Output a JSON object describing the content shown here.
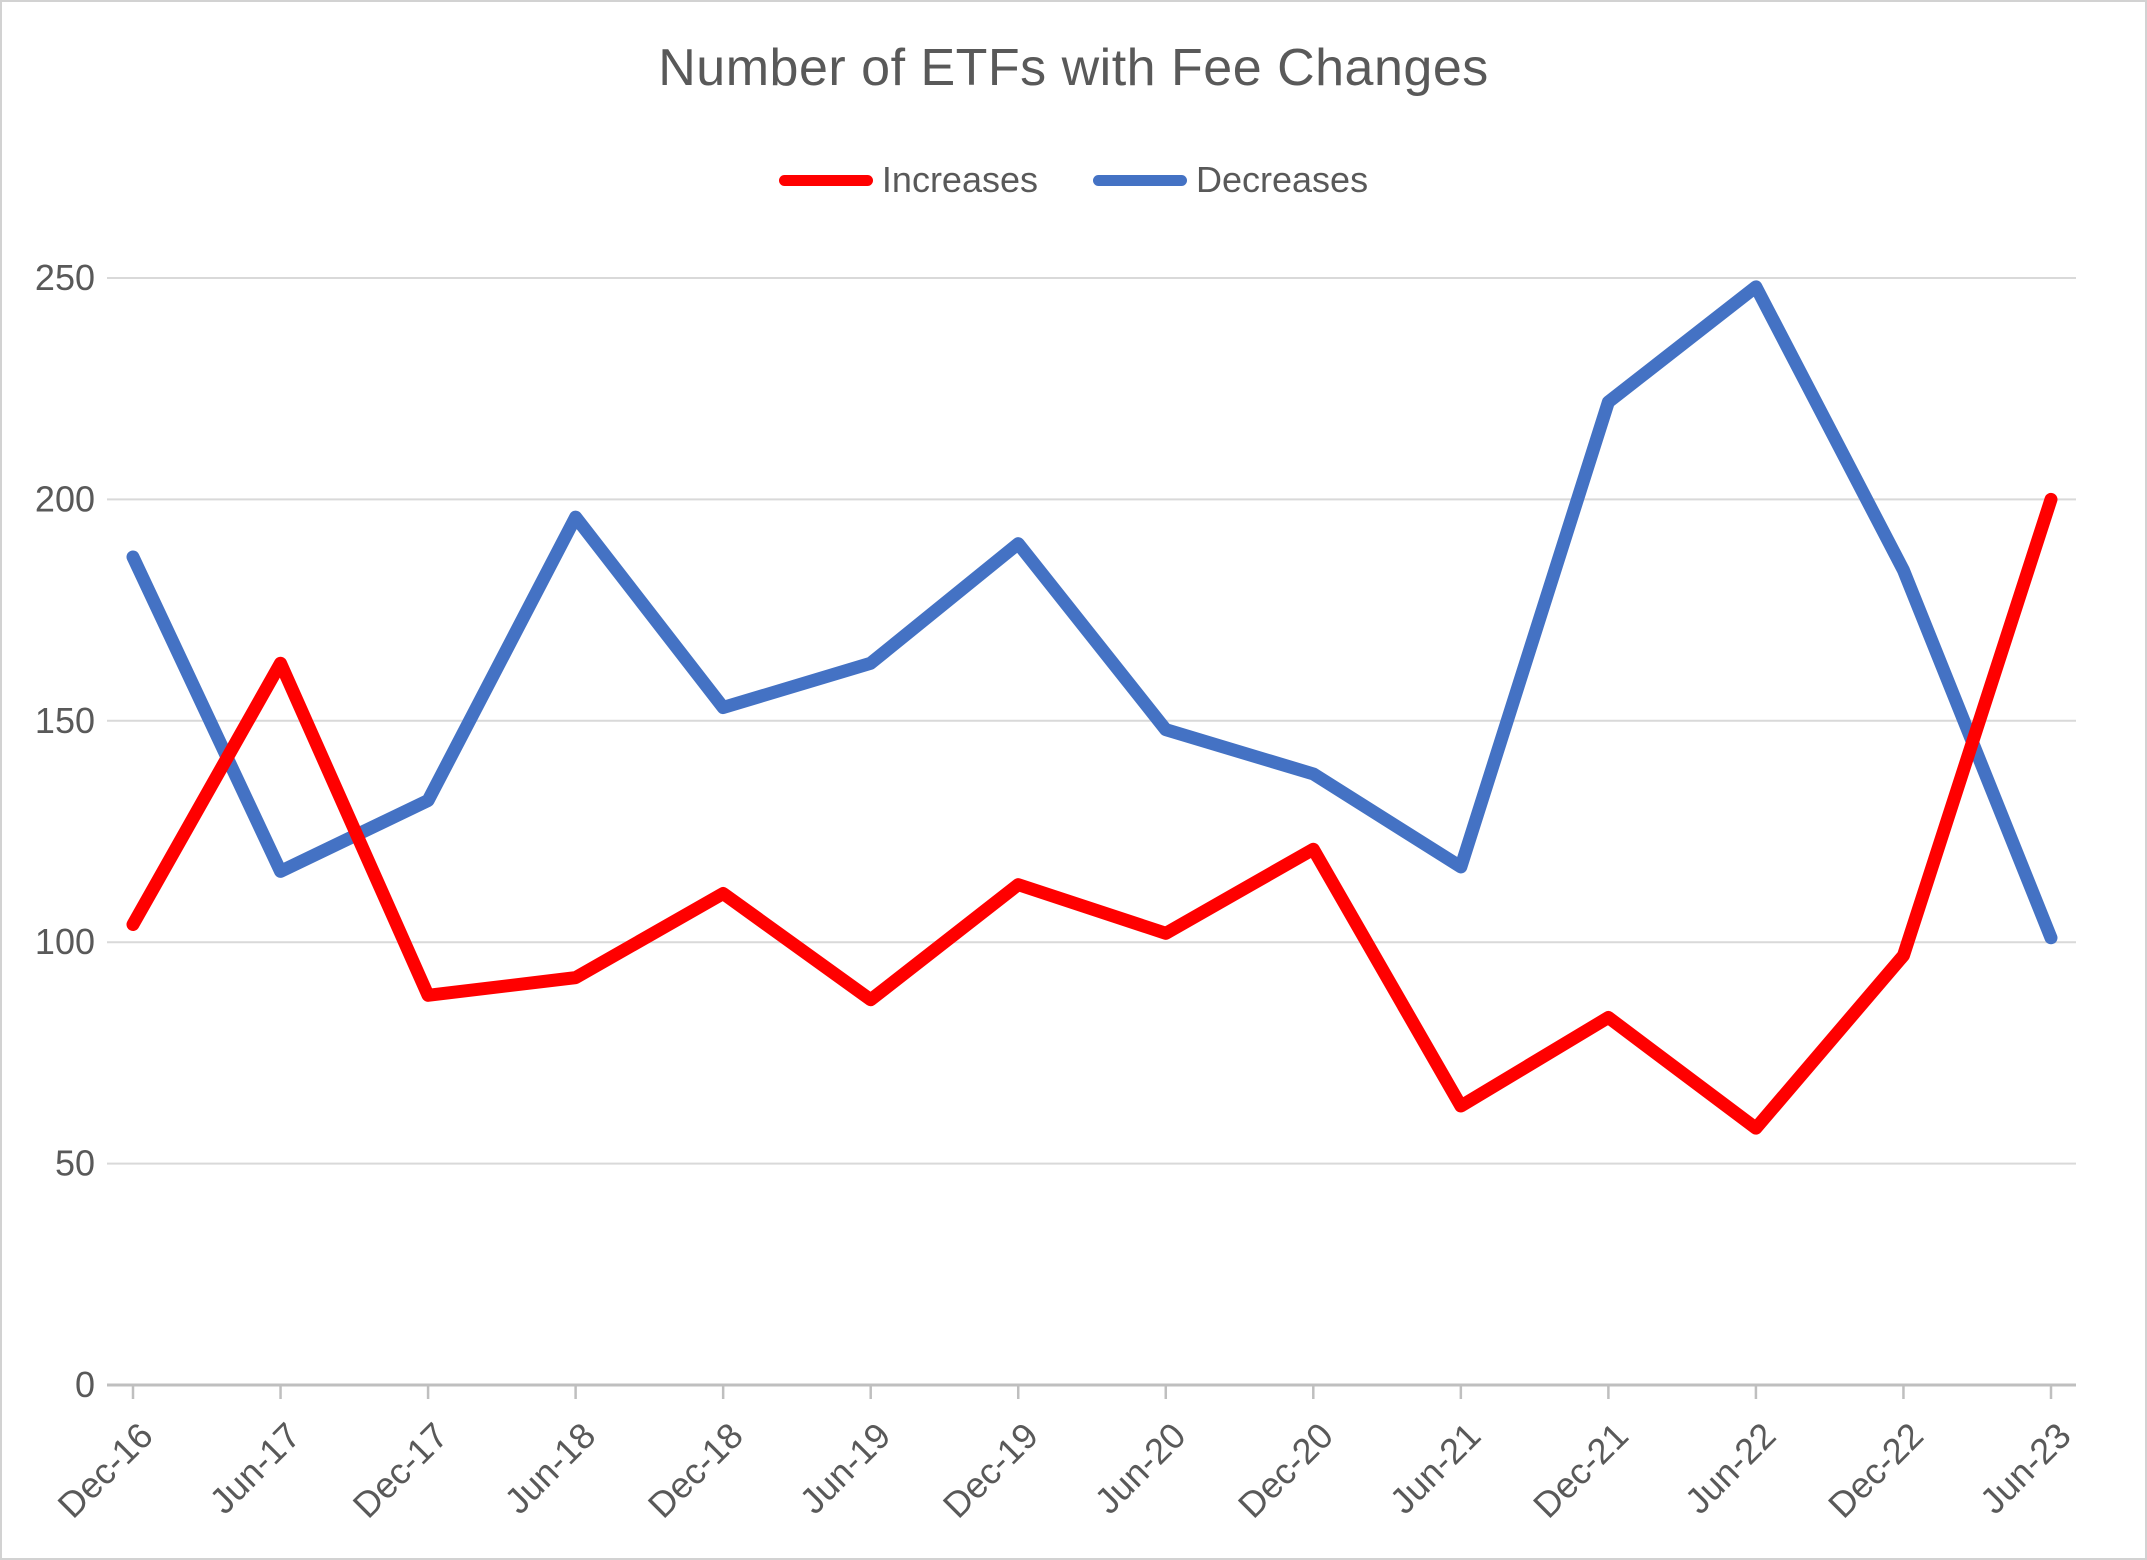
{
  "chart": {
    "frame_border_color": "#d2d2d2",
    "background_color": "#ffffff",
    "text_color": "#595959",
    "gridline_color": "#d9d9d9",
    "axis_line_color": "#bfbfbf"
  },
  "chart_data": {
    "type": "line",
    "title": "Number of ETFs with Fee Changes",
    "xlabel": "",
    "ylabel": "",
    "categories": [
      "Dec-16",
      "Jun-17",
      "Dec-17",
      "Jun-18",
      "Dec-18",
      "Jun-19",
      "Dec-19",
      "Jun-20",
      "Dec-20",
      "Jun-21",
      "Dec-21",
      "Jun-22",
      "Dec-22",
      "Jun-23"
    ],
    "series": [
      {
        "name": "Increases",
        "color": "#ff0000",
        "values": [
          104,
          163,
          88,
          92,
          111,
          87,
          113,
          102,
          121,
          63,
          83,
          58,
          97,
          200
        ]
      },
      {
        "name": "Decreases",
        "color": "#4472c4",
        "values": [
          187,
          116,
          132,
          196,
          153,
          163,
          190,
          148,
          138,
          117,
          222,
          248,
          184,
          101
        ]
      }
    ],
    "ylim": [
      0,
      250
    ],
    "y_ticks": [
      0,
      50,
      100,
      150,
      200,
      250
    ],
    "grid": true,
    "legend_position": "top"
  }
}
